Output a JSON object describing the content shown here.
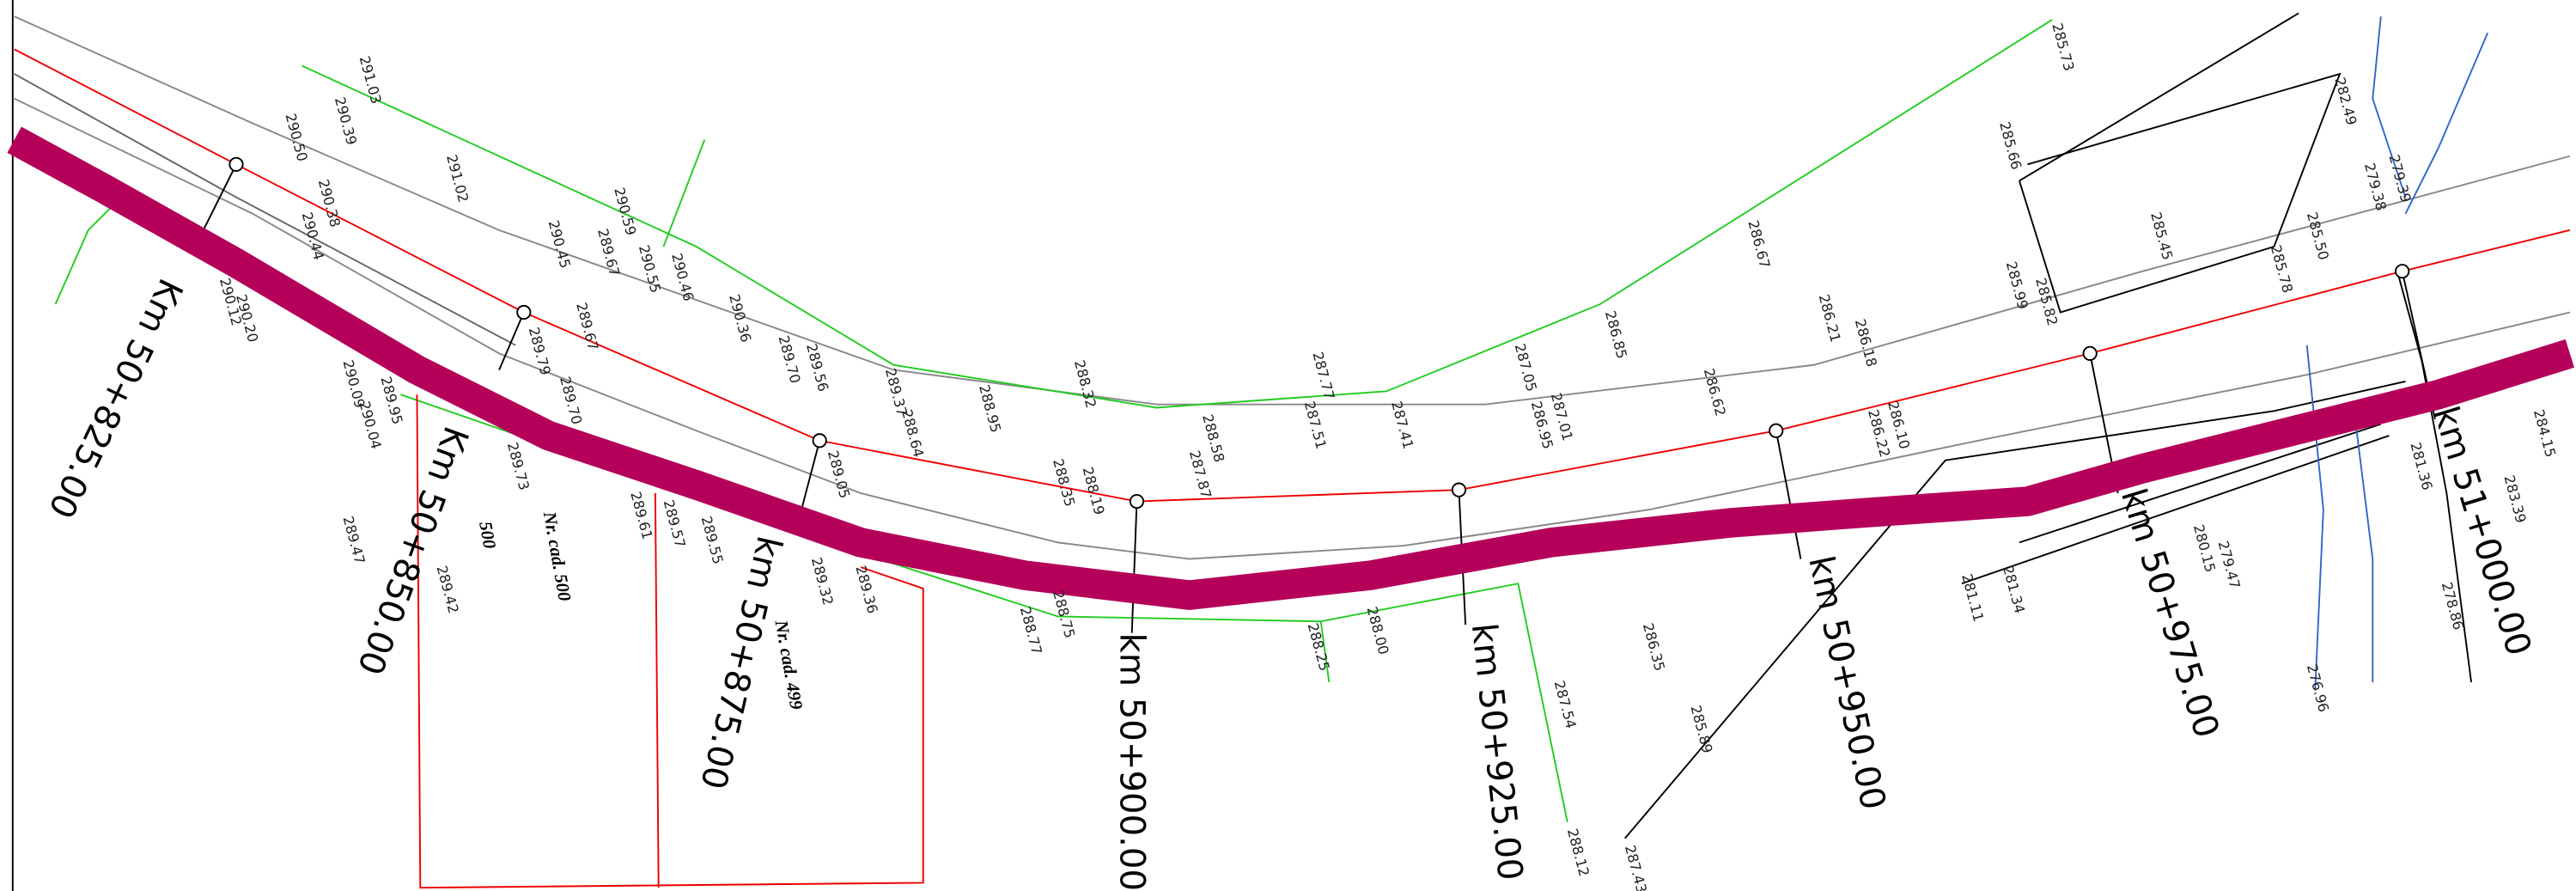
{
  "chainages": [
    "Km 50+825.00",
    "Km 50+850.00",
    "km 50+875.00",
    "km 50+900.00",
    "km 50+925.00",
    "km 50+950.00",
    "km 50+975.00",
    "km 51+000.00"
  ],
  "cadastral": [
    "Nr. cad. 500",
    "500",
    "Nr. cad. 499"
  ],
  "elevations": [
    "291.03",
    "290.39",
    "290.50",
    "291.02",
    "290.38",
    "290.44",
    "290.20",
    "290.12",
    "290.09",
    "289.95",
    "290.04",
    "289.47",
    "289.42",
    "289.61",
    "289.57",
    "289.55",
    "289.73",
    "289.79",
    "289.67",
    "289.70",
    "290.59",
    "290.55",
    "290.46",
    "290.36",
    "289.67",
    "290.45",
    "289.70",
    "289.56",
    "289.05",
    "289.32",
    "289.36",
    "289.37",
    "288.64",
    "288.95",
    "288.32",
    "288.58",
    "287.87",
    "287.77",
    "287.51",
    "287.41",
    "287.05",
    "286.95",
    "287.01",
    "286.85",
    "286.67",
    "286.62",
    "286.21",
    "286.18",
    "286.10",
    "286.22",
    "285.73",
    "285.66",
    "285.99",
    "285.82",
    "285.45",
    "285.50",
    "282.49",
    "279.38",
    "279.39",
    "285.78",
    "284.15",
    "283.39",
    "281.36",
    "281.11",
    "281.34",
    "279.47",
    "280.15",
    "278.86",
    "276.96",
    "286.35",
    "285.89",
    "287.54",
    "288.12",
    "287.43",
    "288.75",
    "288.77",
    "288.00",
    "288.25",
    "288.35",
    "288.19"
  ]
}
